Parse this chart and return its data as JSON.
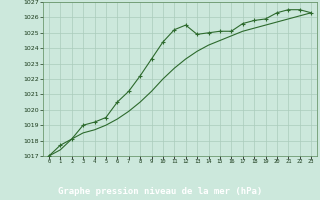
{
  "x_ticks": [
    0,
    1,
    2,
    3,
    4,
    5,
    6,
    7,
    8,
    9,
    10,
    11,
    12,
    13,
    14,
    15,
    16,
    17,
    18,
    19,
    20,
    21,
    22,
    23
  ],
  "line1_x": [
    0,
    1,
    2,
    3,
    4,
    5,
    6,
    7,
    8,
    9,
    10,
    11,
    12,
    13,
    14,
    15,
    16,
    17,
    18,
    19,
    20,
    21,
    22,
    23
  ],
  "line1_y": [
    1017.0,
    1017.7,
    1018.1,
    1019.0,
    1019.2,
    1019.5,
    1020.5,
    1021.2,
    1022.2,
    1023.3,
    1024.4,
    1025.2,
    1025.5,
    1024.9,
    1025.0,
    1025.1,
    1025.1,
    1025.6,
    1025.8,
    1025.9,
    1026.3,
    1026.5,
    1026.5,
    1026.3
  ],
  "line2_x": [
    0,
    1,
    2,
    3,
    4,
    5,
    6,
    7,
    8,
    9,
    10,
    11,
    12,
    13,
    14,
    15,
    16,
    17,
    18,
    19,
    20,
    21,
    22,
    23
  ],
  "line2_y": [
    1017.0,
    1017.4,
    1018.1,
    1018.5,
    1018.7,
    1019.0,
    1019.4,
    1019.9,
    1020.5,
    1021.2,
    1022.0,
    1022.7,
    1023.3,
    1023.8,
    1024.2,
    1024.5,
    1024.8,
    1025.1,
    1025.3,
    1025.5,
    1025.7,
    1025.9,
    1026.1,
    1026.3
  ],
  "ylim": [
    1017,
    1027
  ],
  "xlim_min": -0.5,
  "xlim_max": 23.5,
  "yticks": [
    1017,
    1018,
    1019,
    1020,
    1021,
    1022,
    1023,
    1024,
    1025,
    1026,
    1027
  ],
  "line_color": "#2d6a2d",
  "marker_color": "#2d6a2d",
  "bg_color": "#cce8dc",
  "grid_color": "#aaccbb",
  "xlabel": "Graphe pression niveau de la mer (hPa)",
  "xlabel_bg": "#2d6a2d",
  "xlabel_fg": "#ffffff",
  "marker": "+",
  "marker_size": 3,
  "line_width": 0.8
}
